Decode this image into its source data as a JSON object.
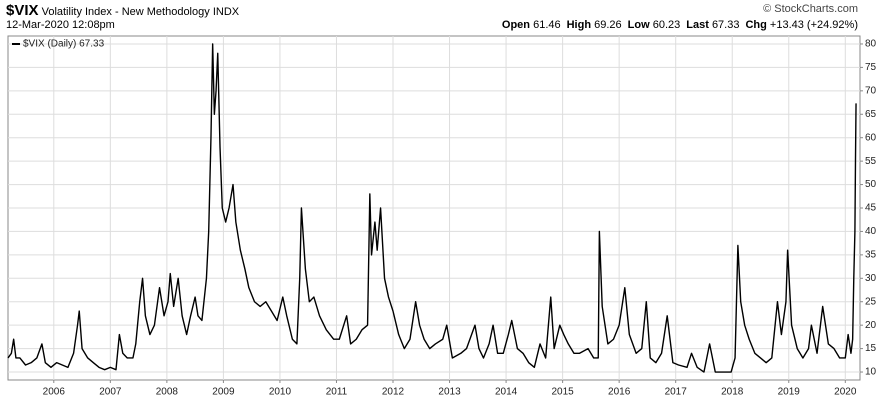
{
  "header": {
    "symbol": "$VIX",
    "name": "Volatility Index - New Methodology",
    "exchange": "INDX",
    "timestamp": "12-Mar-2020 12:08pm",
    "source": "© StockCharts.com",
    "quote": [
      {
        "label": "Open",
        "value": "61.46"
      },
      {
        "label": "High",
        "value": "69.26"
      },
      {
        "label": "Low",
        "value": "60.23"
      },
      {
        "label": "Last",
        "value": "67.33"
      },
      {
        "label": "Chg",
        "value": "+13.43 (+24.92%)"
      }
    ]
  },
  "chart_data": {
    "type": "line",
    "grid": true,
    "legend": "top-left",
    "xlim": [
      2005.19,
      2020.26
    ],
    "xticks": [
      2006,
      2007,
      2008,
      2009,
      2010,
      2011,
      2012,
      2013,
      2014,
      2015,
      2016,
      2017,
      2018,
      2019,
      2020
    ],
    "ylim": [
      8.3,
      81.7
    ],
    "yticks": [
      10,
      15,
      20,
      25,
      30,
      35,
      40,
      45,
      50,
      55,
      60,
      65,
      70,
      75,
      80
    ],
    "x": [
      2005.19,
      2005.25,
      2005.29,
      2005.33,
      2005.4,
      2005.5,
      2005.6,
      2005.7,
      2005.79,
      2005.85,
      2005.95,
      2006.05,
      2006.15,
      2006.25,
      2006.35,
      2006.42,
      2006.45,
      2006.5,
      2006.6,
      2006.7,
      2006.8,
      2006.9,
      2007.0,
      2007.1,
      2007.16,
      2007.22,
      2007.3,
      2007.4,
      2007.45,
      2007.52,
      2007.57,
      2007.62,
      2007.7,
      2007.78,
      2007.87,
      2007.95,
      2008.02,
      2008.06,
      2008.12,
      2008.2,
      2008.27,
      2008.35,
      2008.42,
      2008.5,
      2008.55,
      2008.62,
      2008.7,
      2008.74,
      2008.78,
      2008.81,
      2008.84,
      2008.87,
      2008.9,
      2008.94,
      2008.98,
      2009.04,
      2009.1,
      2009.17,
      2009.22,
      2009.3,
      2009.38,
      2009.45,
      2009.55,
      2009.65,
      2009.75,
      2009.85,
      2009.95,
      2010.05,
      2010.12,
      2010.22,
      2010.3,
      2010.35,
      2010.38,
      2010.45,
      2010.52,
      2010.6,
      2010.7,
      2010.82,
      2010.95,
      2011.05,
      2011.18,
      2011.25,
      2011.35,
      2011.45,
      2011.55,
      2011.59,
      2011.62,
      2011.68,
      2011.72,
      2011.78,
      2011.85,
      2011.92,
      2012.0,
      2012.1,
      2012.2,
      2012.3,
      2012.4,
      2012.47,
      2012.55,
      2012.65,
      2012.75,
      2012.88,
      2012.95,
      2013.05,
      2013.2,
      2013.3,
      2013.45,
      2013.52,
      2013.6,
      2013.7,
      2013.77,
      2013.85,
      2013.95,
      2014.04,
      2014.1,
      2014.2,
      2014.3,
      2014.4,
      2014.5,
      2014.6,
      2014.7,
      2014.79,
      2014.85,
      2014.95,
      2015.02,
      2015.1,
      2015.2,
      2015.3,
      2015.45,
      2015.55,
      2015.63,
      2015.65,
      2015.7,
      2015.8,
      2015.9,
      2016.0,
      2016.1,
      2016.18,
      2016.3,
      2016.4,
      2016.48,
      2016.55,
      2016.65,
      2016.75,
      2016.85,
      2016.95,
      2017.05,
      2017.2,
      2017.28,
      2017.38,
      2017.5,
      2017.6,
      2017.7,
      2017.85,
      2017.98,
      2018.05,
      2018.1,
      2018.15,
      2018.22,
      2018.3,
      2018.4,
      2018.5,
      2018.6,
      2018.7,
      2018.8,
      2018.87,
      2018.95,
      2018.98,
      2019.05,
      2019.15,
      2019.25,
      2019.35,
      2019.4,
      2019.5,
      2019.6,
      2019.7,
      2019.8,
      2019.9,
      2020.0,
      2020.05,
      2020.1,
      2020.13,
      2020.15,
      2020.17,
      2020.18,
      2020.19
    ],
    "series": [
      {
        "name": "$VIX (Daily) 67.33",
        "color": "#000000",
        "values": [
          13,
          14,
          17,
          13,
          13,
          11.5,
          12,
          13,
          16,
          12,
          11,
          12,
          11.5,
          11,
          14,
          20,
          23,
          15,
          13,
          12,
          11,
          10.5,
          11,
          10.5,
          18,
          14,
          13,
          13,
          16,
          25,
          30,
          22,
          18,
          20,
          28,
          22,
          25,
          31,
          24,
          30,
          22,
          18,
          22,
          26,
          22,
          21,
          30,
          40,
          60,
          80,
          65,
          70,
          78,
          58,
          45,
          42,
          45,
          50,
          42,
          36,
          32,
          28,
          25,
          24,
          25,
          23,
          21,
          26,
          22,
          17,
          16,
          30,
          45,
          32,
          25,
          26,
          22,
          19,
          17,
          17,
          22,
          16,
          17,
          19,
          20,
          48,
          35,
          42,
          36,
          45,
          30,
          26,
          23,
          18,
          15,
          17,
          25,
          20,
          17,
          15,
          16,
          17,
          20,
          13,
          14,
          15,
          20,
          15,
          13,
          16,
          20,
          14,
          14,
          18,
          21,
          15,
          14,
          12,
          11,
          16,
          13,
          26,
          15,
          20,
          18,
          16,
          14,
          14,
          15,
          13,
          13,
          40,
          24,
          16,
          17,
          20,
          28,
          18,
          14,
          15,
          25,
          13,
          12,
          14,
          22,
          12,
          11.5,
          11,
          14,
          11,
          10,
          16,
          10,
          10,
          10,
          13,
          37,
          25,
          20,
          17,
          14,
          13,
          12,
          13,
          25,
          18,
          25,
          36,
          20,
          15,
          13,
          15,
          20,
          14,
          24,
          16,
          15,
          13,
          13,
          18,
          14,
          17,
          30,
          40,
          55,
          67.33
        ]
      }
    ]
  }
}
